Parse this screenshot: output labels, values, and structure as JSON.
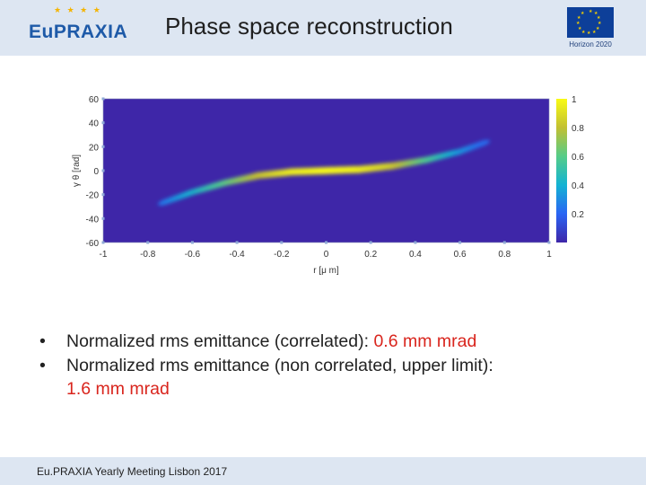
{
  "header": {
    "logo_text": "EuPRAXIA",
    "title": "Phase space reconstruction",
    "funding_label": "Horizon 2020"
  },
  "chart_data": {
    "type": "heatmap",
    "xlabel": "r [μ m]",
    "ylabel": "γ θ [rad]",
    "xlim": [
      -1,
      1
    ],
    "ylim": [
      -60,
      60
    ],
    "xticks": [
      -1,
      -0.8,
      -0.6,
      -0.4,
      -0.2,
      0,
      0.2,
      0.4,
      0.6,
      0.8,
      1
    ],
    "yticks": [
      60,
      40,
      20,
      0,
      -20,
      -40,
      -60
    ],
    "colorbar_ticks": [
      1,
      0.8,
      0.6,
      0.4,
      0.2
    ],
    "colorbar_range": [
      0,
      1
    ],
    "colormap": [
      "#3e26a8",
      "#2a65f4",
      "#13b3d3",
      "#55cc88",
      "#c2c032",
      "#f9fb15"
    ],
    "background": "#3e26a8",
    "distribution": {
      "ridge_points": [
        {
          "x": -0.72,
          "y": -26,
          "intensity": 0.25
        },
        {
          "x": -0.6,
          "y": -18,
          "intensity": 0.4
        },
        {
          "x": -0.45,
          "y": -10,
          "intensity": 0.6
        },
        {
          "x": -0.3,
          "y": -4,
          "intensity": 0.8
        },
        {
          "x": -0.15,
          "y": -1,
          "intensity": 0.95
        },
        {
          "x": 0,
          "y": 0,
          "intensity": 1
        },
        {
          "x": 0.15,
          "y": 1,
          "intensity": 0.97
        },
        {
          "x": 0.3,
          "y": 4,
          "intensity": 0.85
        },
        {
          "x": 0.45,
          "y": 9,
          "intensity": 0.6
        },
        {
          "x": 0.6,
          "y": 16,
          "intensity": 0.35
        },
        {
          "x": 0.72,
          "y": 24,
          "intensity": 0.2
        }
      ]
    }
  },
  "bullets": [
    {
      "text": "Normalized rms emittance (correlated): ",
      "highlight": "0.6 mm mrad"
    },
    {
      "text": "Normalized rms emittance (non correlated, upper limit): ",
      "highlight": "1.6 mm mrad"
    }
  ],
  "footer": {
    "text": "Eu.PRAXIA Yearly Meeting Lisbon 2017"
  },
  "colors": {
    "accent": "#d9251d",
    "header_bg": "#dde6f2"
  }
}
